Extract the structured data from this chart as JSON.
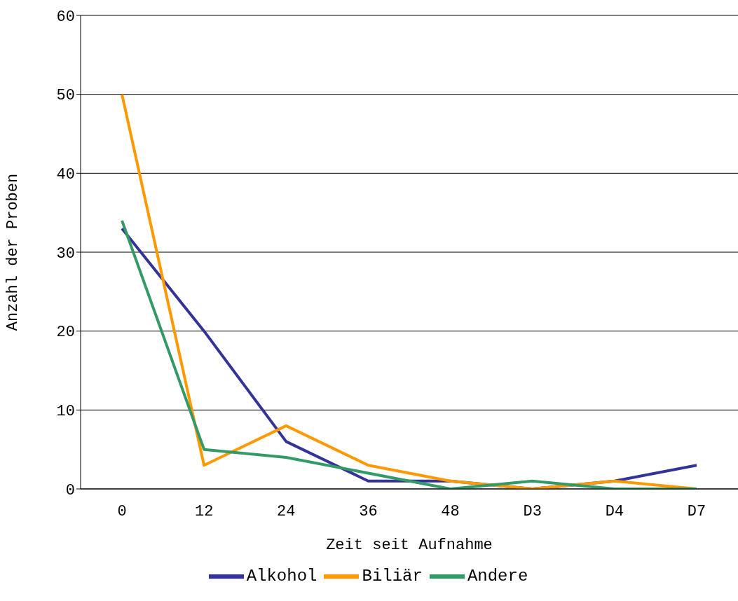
{
  "chart_data": {
    "type": "line",
    "xlabel": "Zeit seit Aufnahme",
    "ylabel": "Anzahl der Proben",
    "categories": [
      "0",
      "12",
      "24",
      "36",
      "48",
      "D3",
      "D4",
      "D7"
    ],
    "series": [
      {
        "name": "Alkohol",
        "color": "#333399",
        "values": [
          33,
          20,
          6,
          1,
          1,
          0,
          1,
          3
        ]
      },
      {
        "name": "Biliär",
        "color": "#ff9900",
        "values": [
          50,
          3,
          8,
          3,
          1,
          0,
          1,
          0
        ]
      },
      {
        "name": "Andere",
        "color": "#339966",
        "values": [
          34,
          5,
          4,
          2,
          0,
          1,
          0,
          0
        ]
      }
    ],
    "ylim": [
      0,
      60
    ],
    "yticks": [
      0,
      10,
      20,
      30,
      40,
      50,
      60
    ],
    "grid": "y",
    "legend": "bottom",
    "marker": "none",
    "line_style": "solid"
  }
}
